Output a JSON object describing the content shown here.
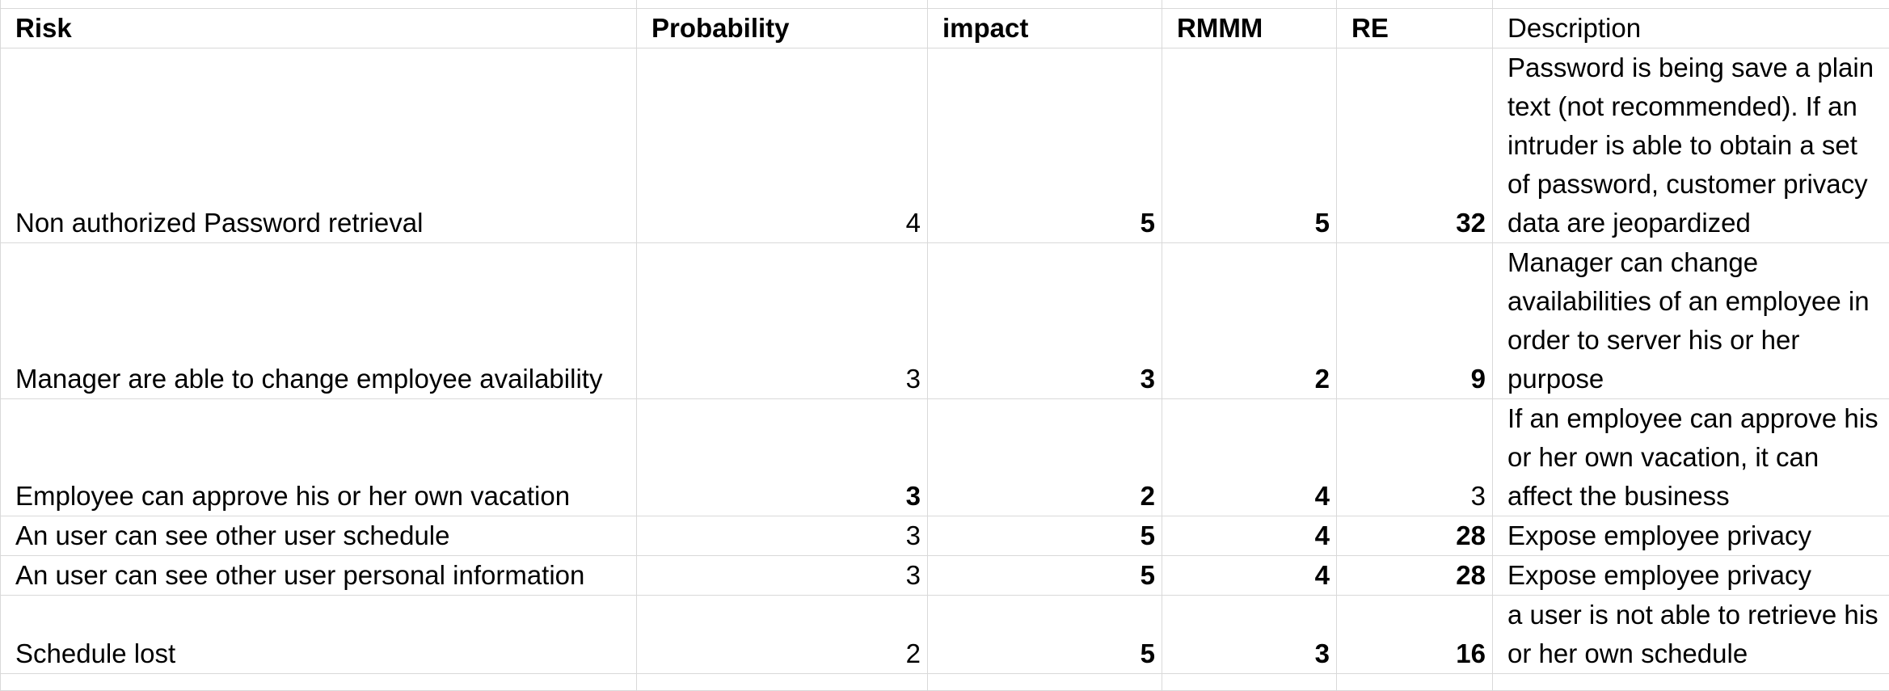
{
  "headers": [
    "Risk",
    "Probability",
    "impact",
    "RMMM",
    "RE",
    "Description"
  ],
  "rows": [
    {
      "risk": "Non authorized Password retrieval",
      "probability": "4",
      "impact": "5",
      "rmmm": "5",
      "re": "32",
      "description": "Password is being save a plain text (not recommended). If an intruder is able to obtain a set of password, customer privacy data are jeopardized"
    },
    {
      "risk": "Manager are able to change employee availability",
      "probability": "3",
      "impact": "3",
      "rmmm": "2",
      "re": "9",
      "description": "Manager can change availabilities of an employee in order to server his or her purpose"
    },
    {
      "risk": "Employee can approve his or her own vacation",
      "probability": "3",
      "impact": "2",
      "rmmm": "4",
      "re": "3",
      "description": "If an employee can approve his or her own vacation, it can affect the business"
    },
    {
      "risk": "An user can see other user schedule",
      "probability": "3",
      "impact": "5",
      "rmmm": "4",
      "re": "28",
      "description": "Expose employee privacy"
    },
    {
      "risk": "An user can see other user personal information",
      "probability": "3",
      "impact": "5",
      "rmmm": "4",
      "re": "28",
      "description": "Expose employee privacy"
    },
    {
      "risk": "Schedule lost",
      "probability": "2",
      "impact": "5",
      "rmmm": "3",
      "re": "16",
      "description": "a user is not able to retrieve his or her own schedule"
    }
  ]
}
